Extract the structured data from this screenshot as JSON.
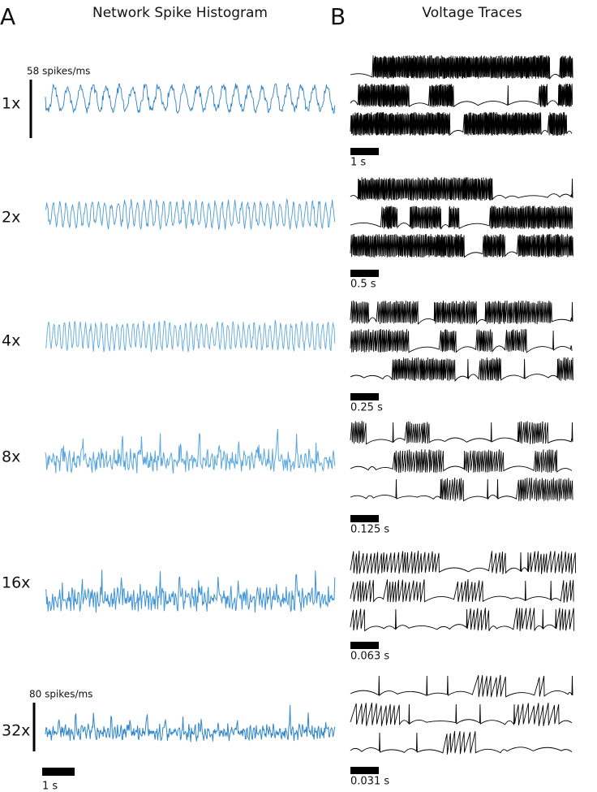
{
  "panel_a": {
    "letter": "A",
    "title": "Network Spike Histogram",
    "rows": [
      "1x",
      "2x",
      "4x",
      "8x",
      "16x",
      "32x"
    ],
    "scale_top": "58 spikes/ms",
    "scale_bottom": "80 spikes/ms",
    "time_scale": "1 s"
  },
  "panel_b": {
    "letter": "B",
    "title": "Voltage Traces",
    "scale_bars": [
      "1 s",
      "0.5 s",
      "0.25 s",
      "0.125 s",
      "0.063 s",
      "0.031 s"
    ]
  }
}
